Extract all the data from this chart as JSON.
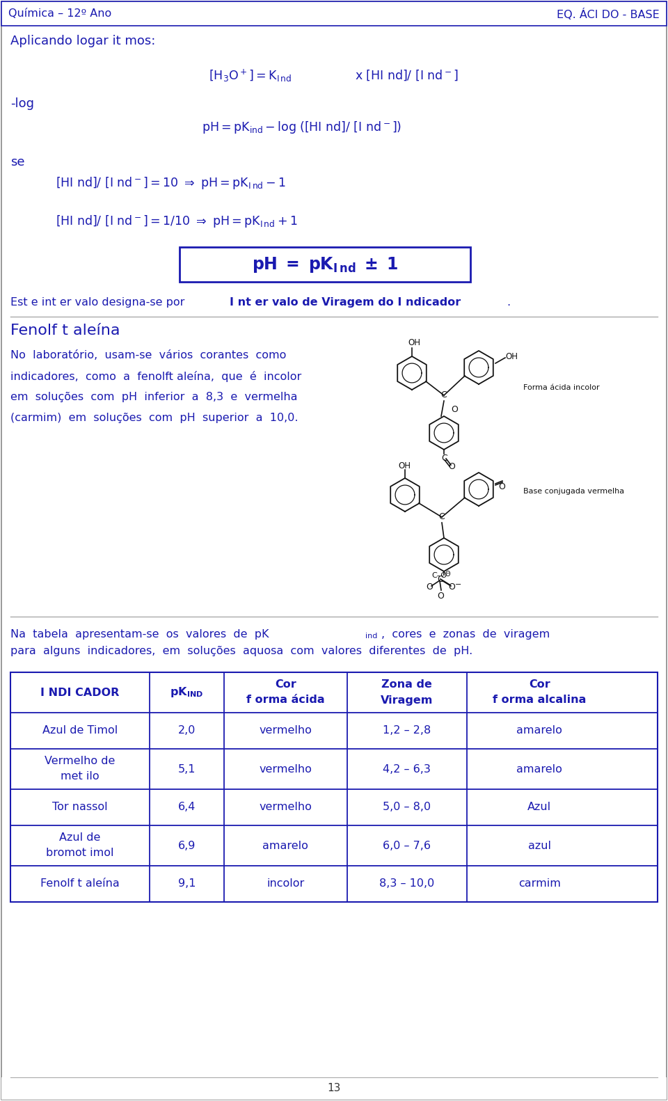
{
  "header_left": "Química – 12º Ano",
  "header_right": "EQ. ÁCI DO - BASE",
  "page_number": "13",
  "text_color": "#1a1ab0",
  "line_color": "#1a1ab0",
  "gray_line": "#aaaaaa",
  "black": "#111111",
  "bg": "#ffffff",
  "table_rows": [
    [
      "Azul de Timol",
      "2,0",
      "vermelho",
      "1,2 – 2,8",
      "amarelo"
    ],
    [
      "Vermelho de\nmet ilo",
      "5,1",
      "vermelho",
      "4,2 – 6,3",
      "amarelo"
    ],
    [
      "Tor nassol",
      "6,4",
      "vermelho",
      "5,0 – 8,0",
      "Azul"
    ],
    [
      "Azul de\nbromot imol",
      "6,9",
      "amarelo",
      "6,0 – 7,6",
      "azul"
    ],
    [
      "Fenolf t aleína",
      "9,1",
      "incolor",
      "8,3 – 10,0",
      "carmim"
    ]
  ]
}
